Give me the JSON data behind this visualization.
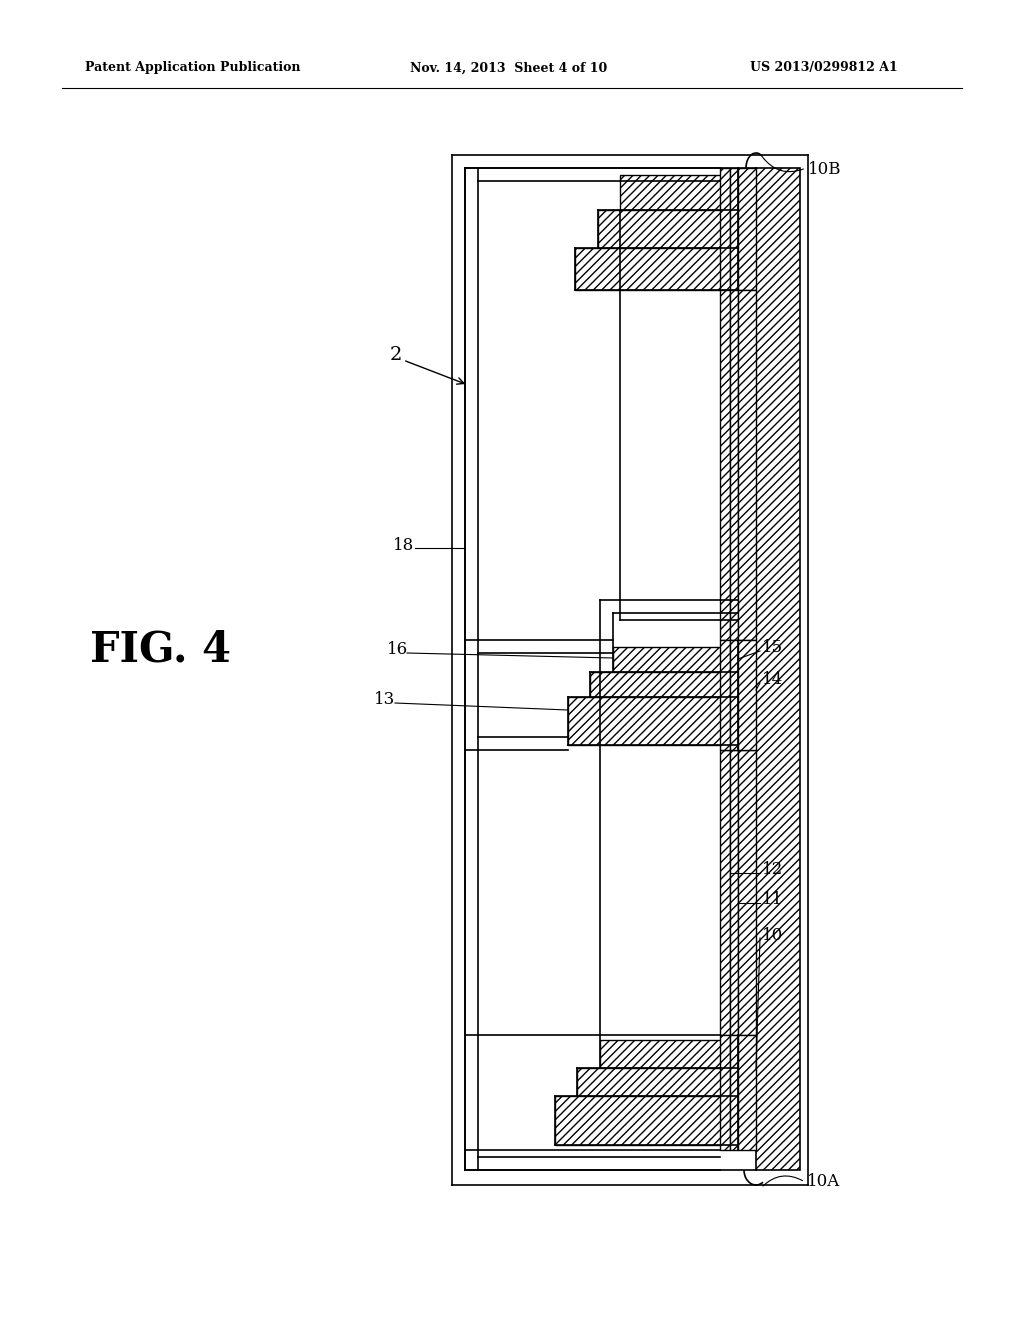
{
  "bg_color": "#ffffff",
  "header_left": "Patent Application Publication",
  "header_mid": "Nov. 14, 2013  Sheet 4 of 10",
  "header_right": "US 2013/0299812 A1",
  "fig_label": "FIG. 4",
  "label_2": "2",
  "label_10A": "10A",
  "label_10B": "10B",
  "label_10": "10",
  "label_11": "11",
  "label_12": "12",
  "label_13": "13",
  "label_14": "14",
  "label_15": "15",
  "label_16": "16",
  "label_18": "18",
  "line_color": "#000000"
}
